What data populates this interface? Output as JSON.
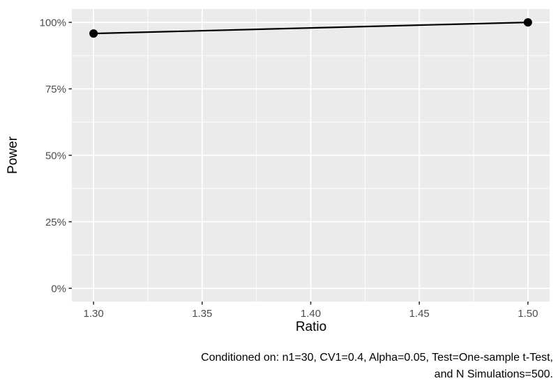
{
  "chart_data": {
    "type": "line",
    "title": "",
    "xlabel": "Ratio",
    "ylabel": "Power",
    "series": [
      {
        "name": "Power",
        "x": [
          1.3,
          1.5
        ],
        "y": [
          0.958,
          1.0
        ]
      }
    ],
    "xlim": [
      1.29,
      1.51
    ],
    "ylim": [
      -0.05,
      1.05
    ],
    "x_ticks": [
      1.3,
      1.35,
      1.4,
      1.45,
      1.5
    ],
    "x_tick_labels": [
      "1.30",
      "1.35",
      "1.40",
      "1.45",
      "1.50"
    ],
    "y_ticks": [
      0,
      0.25,
      0.5,
      0.75,
      1.0
    ],
    "y_tick_labels": [
      "0%",
      "25%",
      "50%",
      "75%",
      "100%"
    ],
    "x_minor_ticks": [
      1.325,
      1.375,
      1.425,
      1.475
    ],
    "y_minor_ticks": [
      0.125,
      0.375,
      0.625,
      0.875
    ],
    "grid": true,
    "legend_position": "none",
    "caption_lines": [
      "Conditioned on: n1=30, CV1=0.4, Alpha=0.05, Test=One-sample t-Test,",
      "and N Simulations=500."
    ],
    "colors": {
      "panel_bg": "#EBEBEB",
      "grid": "#FFFFFF",
      "line": "#000000",
      "point": "#000000",
      "tick_mark": "#333333",
      "tick_label": "#4D4D4D",
      "axis_title": "#000000",
      "caption": "#000000"
    }
  }
}
